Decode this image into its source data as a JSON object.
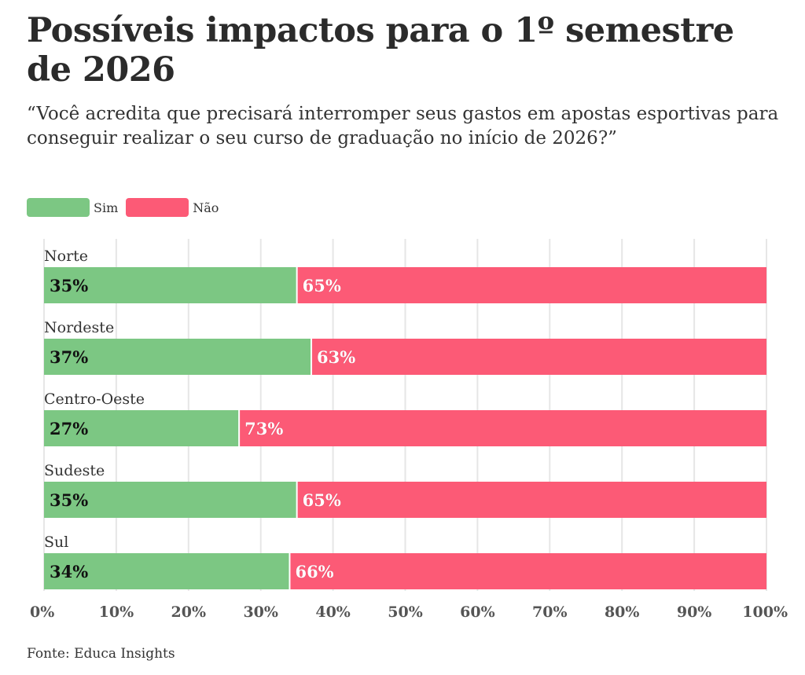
{
  "title": "Possíveis impactos para o 1º semestre de 2026",
  "subtitle": "“Você acredita que precisará interromper seus gastos em apostas esportivas para conseguir realizar o seu curso de graduação no início de 2026?”",
  "source": "Fonte: Educa Insights",
  "colors": {
    "sim": "#7cc783",
    "nao": "#fc5a76",
    "grid": "#e6e6e6"
  },
  "chart_data": {
    "type": "bar",
    "stacked": true,
    "orientation": "horizontal",
    "categories": [
      "Norte",
      "Nordeste",
      "Centro-Oeste",
      "Sudeste",
      "Sul"
    ],
    "series": [
      {
        "name": "Sim",
        "values": [
          35,
          37,
          27,
          35,
          34
        ],
        "labels": [
          "35%",
          "37%",
          "27%",
          "35%",
          "34%"
        ]
      },
      {
        "name": "Não",
        "values": [
          65,
          63,
          73,
          65,
          66
        ],
        "labels": [
          "65%",
          "63%",
          "73%",
          "65%",
          "66%"
        ]
      }
    ],
    "xlim": [
      0,
      100
    ],
    "x_ticks": [
      0,
      10,
      20,
      30,
      40,
      50,
      60,
      70,
      80,
      90,
      100
    ],
    "x_tick_labels": [
      "0%",
      "10%",
      "20%",
      "30%",
      "40%",
      "50%",
      "60%",
      "70%",
      "80%",
      "90%",
      "100%"
    ],
    "grid": true,
    "legend_position": "top-left"
  }
}
